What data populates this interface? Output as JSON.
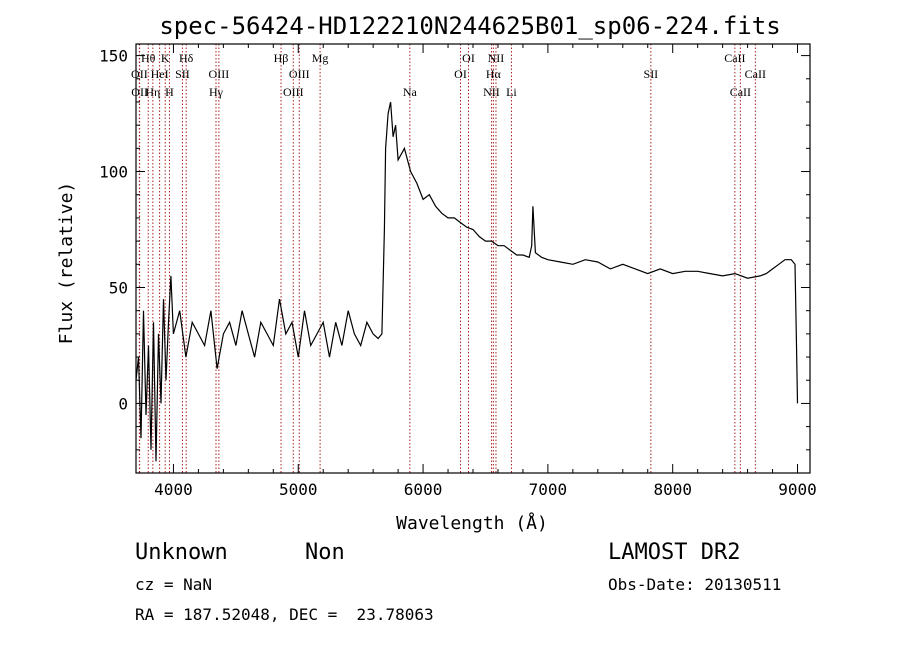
{
  "chart_data": {
    "type": "line",
    "title": "spec-56424-HD122210N244625B01_sp06-224.fits",
    "xlabel": "Wavelength (Å)",
    "ylabel": "Flux (relative)",
    "xlim": [
      3700,
      9100
    ],
    "ylim": [
      -30,
      155
    ],
    "xticks": [
      4000,
      5000,
      6000,
      7000,
      8000,
      9000
    ],
    "yticks": [
      0,
      50,
      100,
      150
    ],
    "series": [
      {
        "x": [
          3700,
          3720,
          3740,
          3760,
          3780,
          3800,
          3820,
          3840,
          3860,
          3880,
          3900,
          3920,
          3940,
          3960,
          3980,
          4000,
          4050,
          4100,
          4150,
          4200,
          4250,
          4300,
          4350,
          4400,
          4450,
          4500,
          4550,
          4600,
          4650,
          4700,
          4750,
          4800,
          4850,
          4900,
          4950,
          5000,
          5050,
          5100,
          5150,
          5200,
          5250,
          5300,
          5350,
          5400,
          5450,
          5500,
          5550,
          5600,
          5640,
          5670,
          5690,
          5700,
          5720,
          5740,
          5760,
          5780,
          5800,
          5850,
          5900,
          5950,
          6000,
          6050,
          6100,
          6150,
          6200,
          6250,
          6300,
          6350,
          6400,
          6450,
          6500,
          6550,
          6600,
          6650,
          6700,
          6750,
          6800,
          6850,
          6870,
          6880,
          6900,
          6950,
          7000,
          7100,
          7200,
          7300,
          7400,
          7500,
          7600,
          7700,
          7800,
          7900,
          8000,
          8100,
          8200,
          8300,
          8400,
          8500,
          8600,
          8700,
          8750,
          8800,
          8850,
          8900,
          8950,
          8980,
          8990,
          9000
        ],
        "y": [
          10,
          20,
          -15,
          40,
          -5,
          25,
          -20,
          35,
          -25,
          30,
          0,
          45,
          10,
          35,
          55,
          30,
          40,
          20,
          35,
          30,
          25,
          40,
          15,
          30,
          35,
          25,
          40,
          30,
          20,
          35,
          30,
          25,
          45,
          30,
          35,
          20,
          40,
          25,
          30,
          35,
          20,
          35,
          25,
          40,
          30,
          25,
          35,
          30,
          28,
          30,
          75,
          110,
          125,
          130,
          115,
          120,
          105,
          110,
          100,
          95,
          88,
          90,
          85,
          82,
          80,
          80,
          78,
          76,
          75,
          72,
          70,
          70,
          68,
          68,
          66,
          64,
          64,
          63,
          68,
          85,
          65,
          63,
          62,
          61,
          60,
          62,
          61,
          58,
          60,
          58,
          56,
          58,
          56,
          57,
          57,
          56,
          55,
          56,
          54,
          55,
          56,
          58,
          60,
          62,
          62,
          60,
          30,
          0
        ]
      }
    ],
    "lines": [
      {
        "label": "OII",
        "x": 3727,
        "row": 2
      },
      {
        "label": "OII",
        "x": 3729,
        "row": 3
      },
      {
        "label": "Hθ",
        "x": 3798,
        "row": 1
      },
      {
        "label": "Hη",
        "x": 3835,
        "row": 3
      },
      {
        "label": "HeI",
        "x": 3889,
        "row": 2
      },
      {
        "label": "K",
        "x": 3934,
        "row": 1
      },
      {
        "label": "H",
        "x": 3968,
        "row": 3
      },
      {
        "label": "SII",
        "x": 4072,
        "row": 2
      },
      {
        "label": "Hδ",
        "x": 4102,
        "row": 1
      },
      {
        "label": "OIII",
        "x": 4364,
        "row": 2
      },
      {
        "label": "Hγ",
        "x": 4341,
        "row": 3
      },
      {
        "label": "Hβ",
        "x": 4862,
        "row": 1
      },
      {
        "label": "OIII",
        "x": 4960,
        "row": 3
      },
      {
        "label": "OIII",
        "x": 5008,
        "row": 2
      },
      {
        "label": "Mg",
        "x": 5175,
        "row": 1
      },
      {
        "label": "Na",
        "x": 5894,
        "row": 3
      },
      {
        "label": "OI",
        "x": 6300,
        "row": 2
      },
      {
        "label": "OI",
        "x": 6364,
        "row": 1
      },
      {
        "label": "NII",
        "x": 6548,
        "row": 3
      },
      {
        "label": "Hα",
        "x": 6563,
        "row": 2
      },
      {
        "label": "NII",
        "x": 6584,
        "row": 1
      },
      {
        "label": "Li",
        "x": 6708,
        "row": 3
      },
      {
        "label": "SII",
        "x": 7825,
        "row": 2
      },
      {
        "label": "CaII",
        "x": 8498,
        "row": 1
      },
      {
        "label": "CaII",
        "x": 8542,
        "row": 3
      },
      {
        "label": "CaII",
        "x": 8662,
        "row": 2
      }
    ]
  },
  "info": {
    "class": "Unknown",
    "subclass": "Non",
    "survey": "LAMOST DR2",
    "cz": "cz = NaN",
    "obs_date": "Obs-Date: 20130511",
    "coords": "RA = 187.52048, DEC =  23.78063"
  },
  "colors": {
    "spectrum": "#000000",
    "line_marker": "#aa2222",
    "axis": "#000000"
  }
}
